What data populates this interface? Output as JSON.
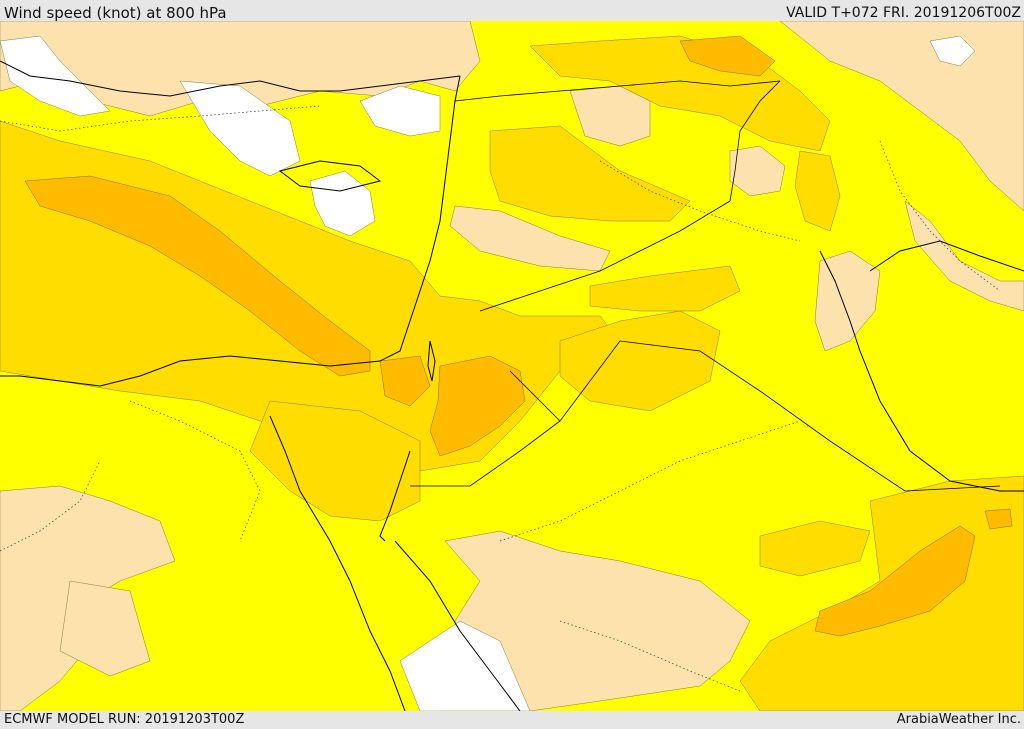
{
  "header": {
    "title": "Wind speed (knot) at 800 hPa",
    "valid": "VALID T+072 FRI. 20191206T00Z"
  },
  "footer": {
    "model_run": "ECMWF MODEL RUN: 20191203T00Z",
    "credit": "ArabiaWeather Inc."
  },
  "colors": {
    "band_0_10": "#ffffff",
    "band_10_20": "#fde2ad",
    "band_20_30": "#ffff00",
    "band_30_40": "#ffdd00",
    "band_40_50": "#ffbb00",
    "coastline": "#000000"
  }
}
